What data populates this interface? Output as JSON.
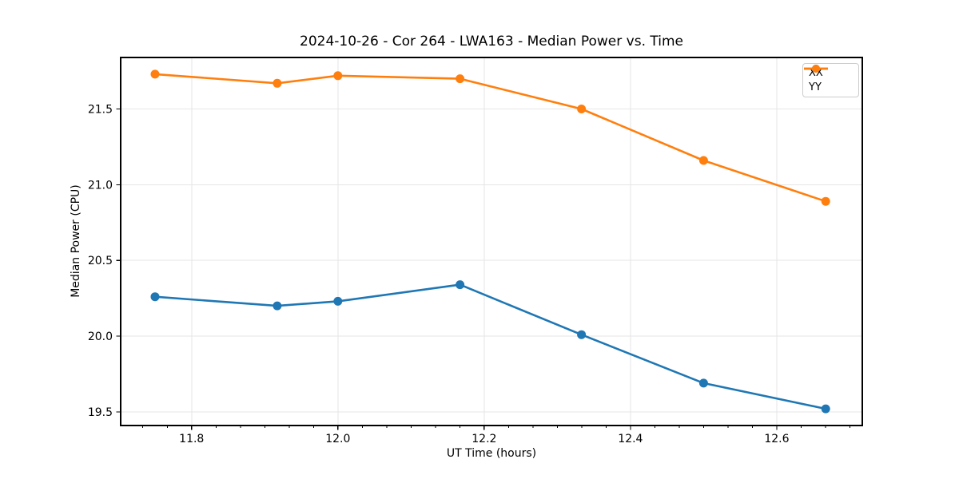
{
  "chart_data": {
    "type": "line",
    "title": "2024-10-26 - Cor 264 - LWA163 - Median Power vs. Time",
    "xlabel": "UT Time (hours)",
    "ylabel": "Median Power (CPU)",
    "x": [
      11.75,
      11.917,
      12.0,
      12.167,
      12.333,
      12.5,
      12.667
    ],
    "series": [
      {
        "name": "XX",
        "color": "#1f77b4",
        "values": [
          20.26,
          20.2,
          20.23,
          20.34,
          20.01,
          19.69,
          19.52
        ]
      },
      {
        "name": "YY",
        "color": "#ff7f0e",
        "values": [
          21.73,
          21.67,
          21.72,
          21.7,
          21.5,
          21.16,
          20.89
        ]
      }
    ],
    "xlim": [
      11.703,
      12.717
    ],
    "ylim": [
      19.41,
      21.84
    ],
    "xticks": [
      {
        "value": 11.8,
        "label": "11.8"
      },
      {
        "value": 12.0,
        "label": "12.0"
      },
      {
        "value": 12.2,
        "label": "12.2"
      },
      {
        "value": 12.4,
        "label": "12.4"
      },
      {
        "value": 12.6,
        "label": "12.6"
      }
    ],
    "yticks": [
      {
        "value": 19.5,
        "label": "19.5"
      },
      {
        "value": 20.0,
        "label": "20.0"
      },
      {
        "value": 20.5,
        "label": "20.5"
      },
      {
        "value": 21.0,
        "label": "21.0"
      },
      {
        "value": 21.5,
        "label": "21.5"
      }
    ],
    "minor_xtick_step": 0.0333333,
    "grid": true,
    "legend": {
      "position": "upper right",
      "entries": [
        "XX",
        "YY"
      ]
    },
    "colors": {
      "axis": "#000000",
      "grid": "#e6e6e6",
      "text": "#000000",
      "legend_border": "#cccccc",
      "background": "#ffffff"
    }
  }
}
